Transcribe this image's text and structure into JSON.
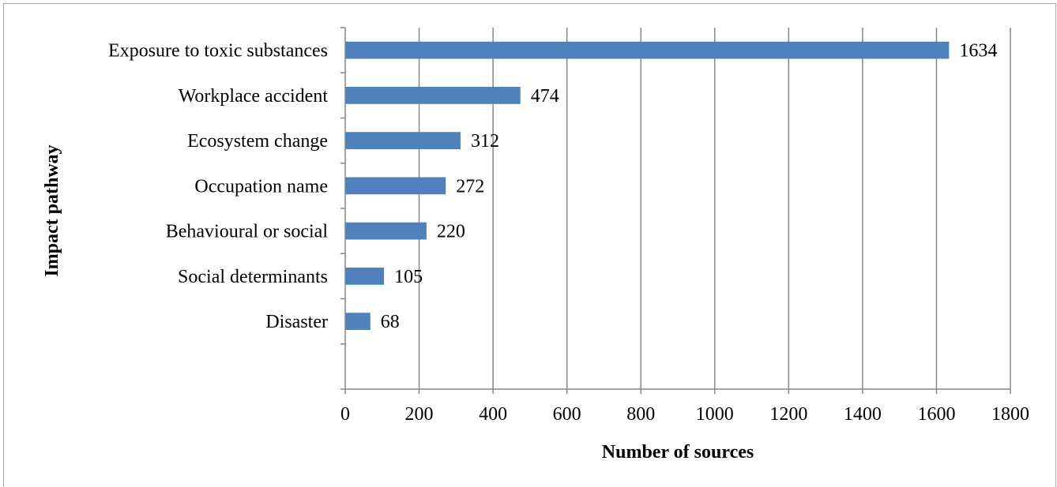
{
  "chart_data": {
    "type": "bar",
    "orientation": "horizontal",
    "categories": [
      "Exposure to toxic substances",
      "Workplace accident",
      "Ecosystem change",
      "Occupation name",
      "Behavioural or social",
      "Social determinants",
      "Disaster"
    ],
    "values": [
      1634,
      474,
      312,
      272,
      220,
      105,
      68
    ],
    "xlabel": "Number of sources",
    "ylabel": "Impact pathway",
    "xlim": [
      0,
      1800
    ],
    "xticks": [
      "0",
      "200",
      "400",
      "600",
      "800",
      "1000",
      "1200",
      "1400",
      "1600",
      "1800"
    ],
    "grid": "vertical",
    "legend": "none",
    "bar_color": "#4f81bd",
    "grid_color": "#868686"
  }
}
